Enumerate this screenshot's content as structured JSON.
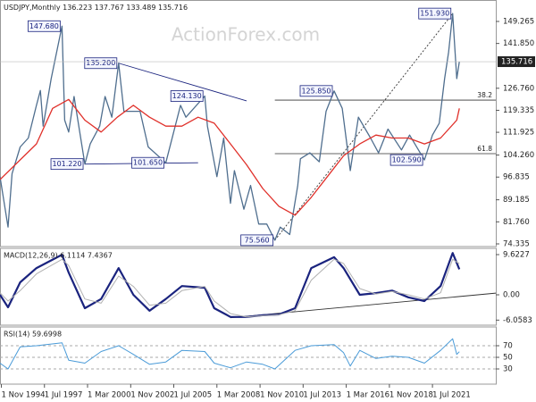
{
  "chart_data": [
    {
      "type": "line",
      "title": "USDJPY,Monthly 136.223 137.767 133.489 135.716",
      "watermark": "ActionForex.com",
      "ylim": [
        73.43,
        156.34
      ],
      "yticks": [
        149.265,
        {
          "value": 141.85,
          "label": "141.850"
        },
        {
          "value": 126.76,
          "label": "126.760"
        },
        119.335,
        111.925,
        {
          "value": 104.26,
          "label": "104.260"
        },
        96.835,
        89.185,
        {
          "value": 81.76,
          "label": "81.760"
        },
        74.335
      ],
      "last_value": {
        "value": 135.716,
        "label": "135.716"
      },
      "series": [
        {
          "color": "#4f6e8e",
          "x": [
            "1 Oct 1994",
            "1 Apr 1995",
            "1 Jul 1995",
            "1 Jan 1996",
            "1 Jul 1996",
            "1 Jan 1997",
            "1 Apr 1997",
            "1 Jun 1997",
            "1 Dec 1997",
            "1 Aug 1998",
            "1 Oct 1998",
            "1 Jan 1999",
            "1 May 1999",
            "1 Jan 2000",
            "1 May 2000",
            "1 Dec 2000",
            "1 Apr 2001",
            "1 Sep 2001",
            "1 Feb 2002",
            "1 Jun 2002",
            "1 Dec 2002",
            "1 Jun 2003",
            "1 Dec 2003",
            "1 Jan 2005",
            "1 Dec 2005",
            "1 Apr 2006",
            "1 Jun 2007",
            "1 Aug 2007",
            "1 Mar 2008",
            "1 Aug 2008",
            "1 Jan 2009",
            "1 Apr 2009",
            "1 Nov 2009",
            "1 Apr 2010",
            "1 Oct 2010",
            "1 Apr 2011",
            "1 Oct 2011",
            "1 Feb 2012",
            "1 Sep 2012",
            "1 Mar 2013",
            "1 May 2013",
            "1 Dec 2013",
            "1 Jul 2014",
            "1 Dec 2014",
            "1 Jun 2015",
            "1 Dec 2015",
            "1 Jun 2016",
            "1 Dec 2016",
            "1 Sep 2017",
            "1 Mar 2018",
            "1 Oct 2018",
            "1 Aug 2019",
            "1 Feb 2020",
            "1 Jan 2021",
            "1 Jul 2021",
            "1 Dec 2021",
            "1 Apr 2022",
            "1 Jul 2022",
            "1 Oct 2022",
            "1 Jan 2023",
            "1 Mar 2023"
          ],
          "values": [
            97,
            80,
            98,
            107,
            110,
            121,
            126,
            114,
            130,
            147.68,
            116,
            112,
            124,
            101.22,
            108,
            114,
            124,
            117,
            135.2,
            119,
            119,
            119,
            107,
            101.65,
            121,
            117,
            124.13,
            114,
            97,
            110,
            88,
            99,
            86,
            94,
            81,
            81,
            75.56,
            80,
            77.5,
            94,
            103,
            105,
            102,
            119,
            125.85,
            120,
            99,
            117,
            110,
            105,
            113,
            106,
            111,
            102.59,
            111,
            115,
            130,
            139,
            151.93,
            130,
            135.716
          ]
        },
        {
          "color": "#e0302a",
          "x": [
            "1 Oct 1994",
            "1 Jan 1997",
            "1 Jan 1998",
            "1 Jan 1999",
            "1 Jan 2000",
            "1 Jan 2001",
            "1 Jan 2002",
            "1 Jan 2003",
            "1 Jan 2004",
            "1 Jan 2005",
            "1 Jan 2006",
            "1 Jan 2007",
            "1 Jan 2008",
            "1 Jan 2009",
            "1 Jan 2010",
            "1 Jan 2011",
            "1 Jan 2012",
            "1 Jan 2013",
            "1 Jan 2014",
            "1 Jan 2015",
            "1 Jan 2016",
            "1 Jan 2017",
            "1 Jan 2018",
            "1 Jan 2019",
            "1 Jan 2020",
            "1 Jan 2021",
            "1 Jan 2022",
            "1 Jan 2023",
            "1 Mar 2023"
          ],
          "values": [
            96,
            108,
            120,
            123,
            116,
            112,
            117,
            121,
            117,
            114,
            114,
            117,
            115,
            108,
            101,
            93,
            87,
            84,
            90,
            97,
            104,
            108,
            111,
            110,
            110,
            108,
            110,
            116,
            120
          ]
        }
      ],
      "annotations": [
        {
          "x": "1 Aug 1998",
          "value": 147.68,
          "label": "147.680"
        },
        {
          "x": "1 Feb 2002",
          "value": 135.2,
          "label": "135.200"
        },
        {
          "x": "1 Jun 2007",
          "value": 124.13,
          "label": "124.130"
        },
        {
          "x": "1 Jun 2015",
          "value": 125.85,
          "label": "125.850"
        },
        {
          "x": "1 Jan 2000",
          "value": 101.22,
          "label": "101.220"
        },
        {
          "x": "1 Jan 2005",
          "value": 101.65,
          "label": "101.650"
        },
        {
          "x": "1 Oct 2011",
          "value": 75.56,
          "label": "75.560"
        },
        {
          "x": "1 Jan 2021",
          "value": 102.59,
          "label": "102.590"
        },
        {
          "x": "1 Oct 2022",
          "value": 151.93,
          "label": "151.930"
        }
      ],
      "trendlines": [
        {
          "x": [
            "1 Feb 2002",
            "1 Jan 2010"
          ],
          "values": [
            135.2,
            122.5
          ],
          "color": "#1a237e",
          "dashed": false
        },
        {
          "x": [
            "1 Jan 2000",
            "1 Jan 2007"
          ],
          "values": [
            101.22,
            101.65
          ],
          "color": "#1a237e",
          "dashed": false
        },
        {
          "x": [
            "1 Oct 2011",
            "1 Oct 2022"
          ],
          "values": [
            75.56,
            151.93
          ],
          "color": "#333333",
          "dashed": true
        }
      ],
      "fib_levels": [
        {
          "label": "38.2",
          "value": 122.76
        },
        {
          "label": "61.8",
          "value": 104.73
        }
      ]
    },
    {
      "type": "line",
      "title": "MACD(12,26,9) 6.1114 7.4367",
      "ylim": [
        -7.27,
        11.12
      ],
      "yticks": [
        9.6227,
        {
          "value": 0,
          "label": "0.00"
        },
        -6.0583
      ],
      "series": [
        {
          "color": "#1a237e",
          "width": 2.2,
          "x": [
            "1 Oct 1994",
            "1 Apr 1995",
            "1 Jan 1996",
            "1 Jan 1997",
            "1 Aug 1998",
            "1 Jan 1999",
            "1 Jan 2000",
            "1 Jan 2001",
            "1 Feb 2002",
            "1 Jan 2003",
            "1 Jan 2004",
            "1 Jan 2005",
            "1 Jan 2006",
            "1 Jun 2007",
            "1 Jan 2008",
            "1 Jan 2009",
            "1 Jan 2010",
            "1 Jan 2011",
            "1 Jan 2012",
            "1 Jan 2013",
            "1 Jan 2014",
            "1 Jun 2015",
            "1 Jan 2016",
            "1 Jan 2017",
            "1 Jan 2018",
            "1 Jan 2019",
            "1 Jan 2020",
            "1 Jan 2021",
            "1 Jan 2022",
            "1 Oct 2022",
            "1 Mar 2023"
          ],
          "values": [
            0,
            -3,
            3,
            6.4,
            9.6,
            5.3,
            -3.2,
            -1,
            6.4,
            0,
            -3.8,
            -1,
            2.1,
            1.7,
            -3.2,
            -5.3,
            -5.3,
            -4.9,
            -4.7,
            -3.2,
            6.4,
            9,
            6.4,
            0,
            0.4,
            1,
            -0.6,
            -1.5,
            2.1,
            10,
            6.1114
          ]
        },
        {
          "color": "#b0b0b0",
          "width": 1,
          "x": [
            "1 Oct 1994",
            "1 Apr 1995",
            "1 Jan 1996",
            "1 Jan 1997",
            "1 Aug 1998",
            "1 Jan 1999",
            "1 Jan 2000",
            "1 Jan 2001",
            "1 Feb 2002",
            "1 Jan 2003",
            "1 Jan 2004",
            "1 Jan 2005",
            "1 Jan 2006",
            "1 Jun 2007",
            "1 Jan 2008",
            "1 Jan 2009",
            "1 Jan 2010",
            "1 Jan 2011",
            "1 Jan 2012",
            "1 Jan 2013",
            "1 Jan 2014",
            "1 Jun 2015",
            "1 Jan 2016",
            "1 Jan 2017",
            "1 Jan 2018",
            "1 Jan 2019",
            "1 Jan 2020",
            "1 Jan 2021",
            "1 Jan 2022",
            "1 Oct 2022",
            "1 Mar 2023"
          ],
          "values": [
            0.5,
            -1.5,
            1,
            5,
            8.5,
            7,
            -1,
            -2,
            4.5,
            2,
            -2.5,
            -2,
            1,
            2,
            -1.5,
            -4.5,
            -5.3,
            -5,
            -4.8,
            -3.8,
            3.5,
            8.5,
            7.5,
            1.5,
            0.2,
            0.8,
            0,
            -1,
            0.5,
            8.5,
            7.4367
          ]
        }
      ],
      "trendlines": [
        {
          "x": [
            "1 Jan 2009",
            "1 Jun 2025"
          ],
          "values": [
            -5.5,
            0.4
          ],
          "color": "#333333",
          "dashed": false
        }
      ]
    },
    {
      "type": "line",
      "title": "RSI(14) 59.6998",
      "ylim": [
        3.85,
        102.3
      ],
      "yticks": [
        70,
        50,
        30
      ],
      "xlim": [
        "1 Oct 1994",
        "1 Jun 2025"
      ],
      "xticks": [
        "1 Nov 1994",
        "1 Jul 1997",
        "1 Mar 2000",
        "1 Nov 2002",
        "1 Jul 2005",
        "1 Mar 2008",
        "1 Nov 2010",
        "1 Jul 2013",
        "1 Mar 2016",
        "1 Nov 2018",
        "1 Jul 2021"
      ],
      "series": [
        {
          "color": "#4a9bd8",
          "width": 1,
          "x": [
            "1 Oct 1994",
            "1 Apr 1995",
            "1 Jan 1996",
            "1 Jan 1997",
            "1 Aug 1998",
            "1 Jan 1999",
            "1 Jan 2000",
            "1 Jan 2001",
            "1 Feb 2002",
            "1 Jan 2003",
            "1 Jan 2004",
            "1 Jan 2005",
            "1 Jan 2006",
            "1 Jun 2007",
            "1 Jan 2008",
            "1 Jan 2009",
            "1 Jan 2010",
            "1 Jan 2011",
            "1 Oct 2011",
            "1 Jan 2013",
            "1 Jan 2014",
            "1 Jun 2015",
            "1 Jan 2016",
            "1 Jun 2016",
            "1 Jan 2017",
            "1 Jan 2018",
            "1 Jan 2019",
            "1 Jan 2020",
            "1 Jan 2021",
            "1 Jan 2022",
            "1 Oct 2022",
            "1 Jan 2023",
            "1 Mar 2023"
          ],
          "values": [
            40,
            30,
            68,
            70,
            75,
            45,
            40,
            60,
            70,
            55,
            38,
            42,
            62,
            60,
            40,
            32,
            42,
            38,
            30,
            62,
            70,
            72,
            58,
            35,
            62,
            48,
            52,
            50,
            40,
            62,
            82,
            55,
            59.6998
          ]
        }
      ]
    }
  ]
}
